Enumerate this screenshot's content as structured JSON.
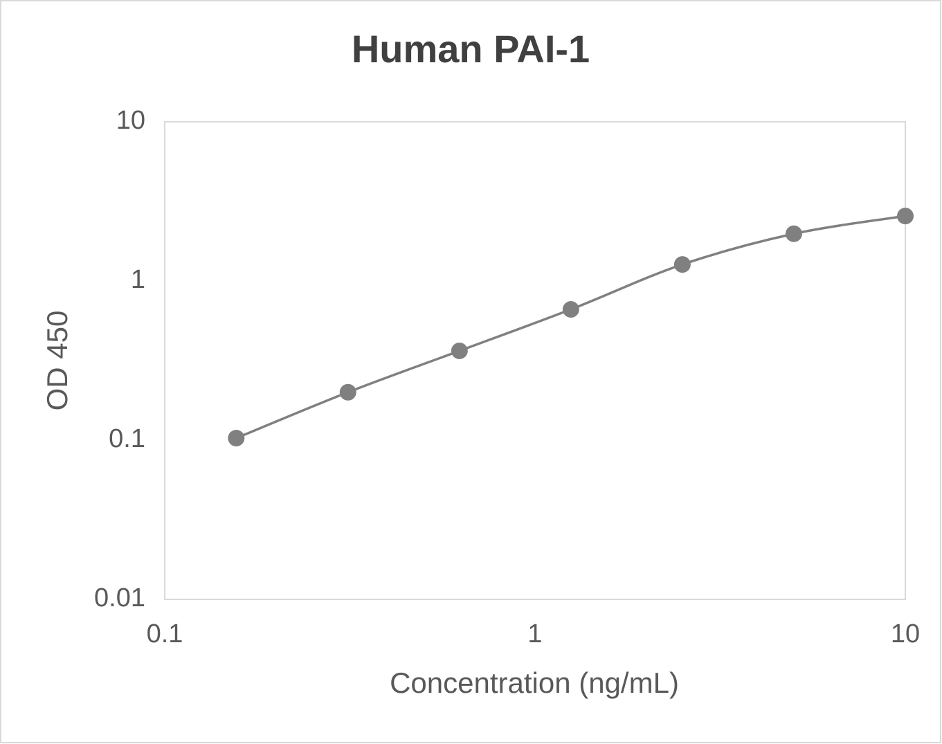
{
  "chart_data": {
    "type": "scatter",
    "title": "Human PAI-1",
    "x_label": "Concentration (ng/mL)",
    "y_label": "OD 450",
    "log_x": true,
    "log_y": true,
    "grid": false,
    "smooth": true,
    "series": [
      {
        "color": "#808080",
        "x": [
          0.156,
          0.3125,
          0.625,
          1.25,
          2.5,
          5,
          10
        ],
        "values": [
          0.103,
          0.2,
          0.364,
          0.663,
          1.27,
          1.98,
          2.56
        ]
      }
    ],
    "xlim": [
      0.1,
      10
    ],
    "xticks": [
      0.1,
      1,
      10
    ],
    "ylim": [
      0.01,
      10
    ],
    "yticks": [
      0.01,
      0.1,
      1,
      10
    ]
  }
}
